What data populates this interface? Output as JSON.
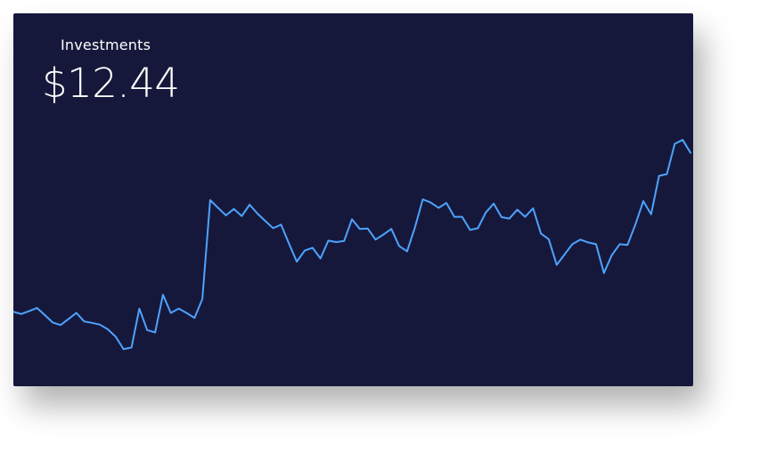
{
  "card": {
    "title": "Investments",
    "value": "$12.44"
  },
  "colors": {
    "background": "#16183b",
    "line": "#4da3ff",
    "text": "#ffffff"
  },
  "chart_data": {
    "type": "line",
    "title": "",
    "xlabel": "",
    "ylabel": "",
    "grid": false,
    "legend": "none",
    "ylim": [
      0,
      100
    ],
    "series": [
      {
        "values": [
          20.9,
          20.3,
          21.1,
          22.0,
          20.0,
          17.9,
          17.2,
          18.9,
          20.6,
          18.2,
          17.8,
          17.3,
          16.0,
          13.9,
          10.4,
          10.9,
          21.8,
          15.8,
          15.1,
          25.7,
          20.6,
          21.8,
          20.6,
          19.2,
          24.5,
          52.3,
          50.1,
          48.0,
          49.8,
          47.8,
          51.0,
          48.5,
          46.4,
          44.4,
          45.4,
          40.1,
          35.0,
          38.1,
          38.9,
          35.9,
          40.9,
          40.5,
          40.8,
          46.9,
          44.2,
          44.3,
          41.2,
          42.6,
          44.2,
          39.4,
          37.9,
          44.6,
          52.5,
          51.6,
          50.1,
          51.5,
          47.6,
          47.6,
          43.9,
          44.4,
          48.8,
          51.3,
          47.5,
          47.1,
          49.6,
          47.6,
          50.0,
          42.9,
          41.3,
          34.1,
          37.0,
          39.9,
          41.2,
          40.4,
          39.9,
          31.8,
          36.8,
          39.9,
          39.7,
          45.4,
          52.0,
          48.3,
          59.1,
          59.6,
          68.1,
          69.2,
          65.6
        ]
      }
    ]
  }
}
